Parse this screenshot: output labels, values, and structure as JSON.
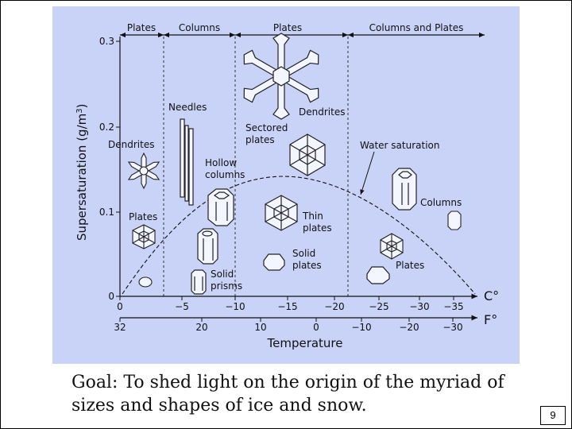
{
  "regions": [
    "Plates",
    "Columns",
    "Plates",
    "Columns and Plates"
  ],
  "y_axis": {
    "label": "Supersaturation (g/m",
    "label_sup": "3",
    "label_close": ")",
    "ticks": [
      "0.3",
      "0.2",
      "0.1",
      "0"
    ]
  },
  "x_axis": {
    "celsius_ticks": [
      "0",
      "−5",
      "−10",
      "−15",
      "−20",
      "−25",
      "−30",
      "−35"
    ],
    "celsius_unit": "C°",
    "fahrenheit_ticks": [
      "32",
      "20",
      "10",
      "0",
      "−10",
      "−20",
      "−30"
    ],
    "fahrenheit_unit": "F°",
    "label": "Temperature"
  },
  "crystal_labels": {
    "dendrites_top": "Dendrites",
    "needles": "Needles",
    "sectored_line1": "Sectored",
    "sectored_line2": "plates",
    "dendrites_left": "Dendrites",
    "hollow_line1": "Hollow",
    "hollow_line2": "columns",
    "water_saturation": "Water saturation",
    "plates_left": "Plates",
    "thin_line1": "Thin",
    "thin_line2": "plates",
    "columns_right": "Columns",
    "solid_plates_line1": "Solid",
    "solid_plates_line2": "plates",
    "solid_prisms_line1": "Solid",
    "solid_prisms_line2": "prisms",
    "plates_right": "Plates"
  },
  "caption": {
    "line1": "Goal: To shed light on the origin of the myriad of",
    "line2": "sizes and shapes of ice and snow."
  },
  "page_number": "9",
  "colors": {
    "diagram_background": "#c9d2f7",
    "crystal_fill": "#f4f6ff",
    "ink": "#111111"
  }
}
